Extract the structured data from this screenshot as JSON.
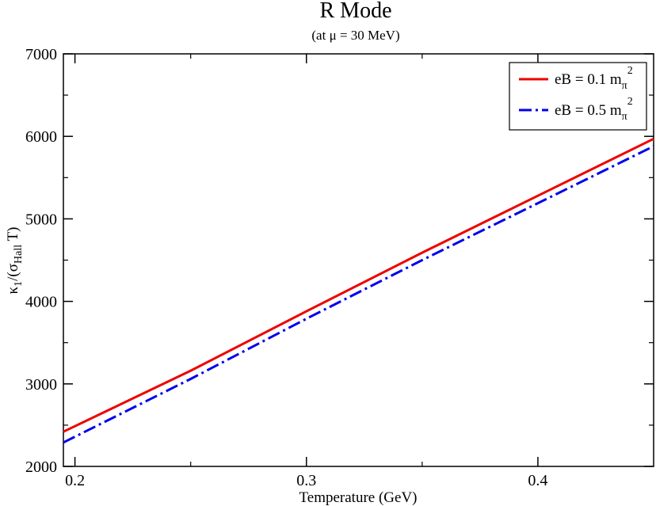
{
  "chart_data": {
    "type": "line",
    "title": "R Mode",
    "subtitle_prefix": "(at ",
    "subtitle_mu": "μ",
    "subtitle_suffix": " = 30 MeV)",
    "xlabel": "Temperature (GeV)",
    "ylabel": {
      "kappa": "κ",
      "kappa_sub": "1",
      "mid": "/(σ",
      "sigma_sub": "Hall",
      "end": " T)"
    },
    "xlim": [
      0.195,
      0.45
    ],
    "ylim": [
      2000,
      7000
    ],
    "x_ticks": [
      0.2,
      0.3,
      0.4
    ],
    "x_tick_labels": [
      "0.2",
      "0.3",
      "0.4"
    ],
    "y_ticks": [
      2000,
      3000,
      4000,
      5000,
      6000,
      7000
    ],
    "y_tick_labels": [
      "2000",
      "3000",
      "4000",
      "5000",
      "6000",
      "7000"
    ],
    "legend_position": "top-right",
    "grid": false,
    "series": [
      {
        "name": "eB = 0.1 m",
        "name_sub": "π",
        "name_sup": "2",
        "color": "#ee0000",
        "style": "solid",
        "x": [
          0.195,
          0.25,
          0.3,
          0.35,
          0.4,
          0.45
        ],
        "y": [
          2420,
          3160,
          3880,
          4590,
          5280,
          5970
        ]
      },
      {
        "name": "eB = 0.5 m",
        "name_sub": "π",
        "name_sup": "2",
        "color": "#0000ee",
        "style": "dash-dot",
        "x": [
          0.195,
          0.25,
          0.3,
          0.35,
          0.4,
          0.45
        ],
        "y": [
          2290,
          3060,
          3790,
          4500,
          5190,
          5880
        ]
      }
    ]
  }
}
